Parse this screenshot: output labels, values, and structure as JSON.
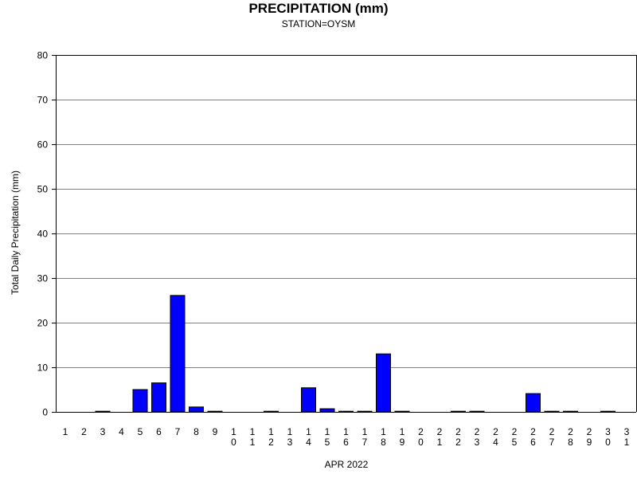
{
  "chart_data": {
    "type": "bar",
    "title": "PRECIPITATION (mm)",
    "subtitle": "STATION=OYSM",
    "xlabel": "APR 2022",
    "ylabel": "Total Daily Precipitation (mm)",
    "ylim": [
      0,
      80
    ],
    "yticks": [
      0,
      10,
      20,
      30,
      40,
      50,
      60,
      70,
      80
    ],
    "grid": true,
    "bar_color": "#0000ff",
    "categories": [
      "1",
      "2",
      "3",
      "4",
      "5",
      "6",
      "7",
      "8",
      "9",
      "10",
      "11",
      "12",
      "13",
      "14",
      "15",
      "16",
      "17",
      "18",
      "19",
      "20",
      "21",
      "22",
      "23",
      "24",
      "25",
      "26",
      "27",
      "28",
      "29",
      "30",
      "31"
    ],
    "values": [
      null,
      null,
      0.1,
      null,
      5.0,
      6.5,
      26.1,
      1.1,
      0.1,
      null,
      null,
      0.1,
      null,
      5.4,
      0.7,
      0.1,
      0.1,
      13.0,
      0.1,
      null,
      null,
      0.1,
      0.1,
      null,
      null,
      4.1,
      0.1,
      0.1,
      null,
      0.1,
      null
    ]
  }
}
